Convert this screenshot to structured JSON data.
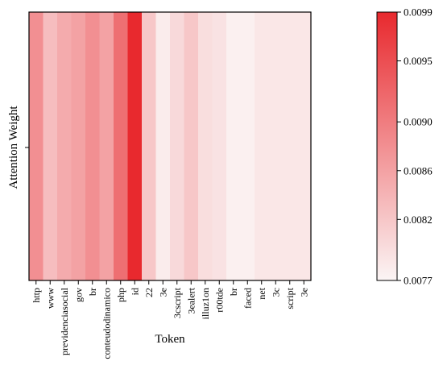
{
  "chart_data": {
    "type": "heatmap",
    "xlabel": "Token",
    "ylabel": "Attention Weight",
    "categories": [
      "http",
      "www",
      "previdenciasocial",
      "gov",
      "br",
      "conteudodinamico",
      "php",
      "id",
      "22",
      "3e",
      "3cscript",
      "3ealert",
      "illuz1on",
      "r00tde",
      "br",
      "faced",
      "net",
      "3c",
      "script",
      "3e"
    ],
    "values": [
      0.0088,
      0.0083,
      0.0085,
      0.0086,
      0.0088,
      0.0086,
      0.00915,
      0.0099,
      0.0082,
      0.0078,
      0.008,
      0.0082,
      0.00795,
      0.0079,
      0.00775,
      0.00775,
      0.00785,
      0.00785,
      0.00785,
      0.00785
    ],
    "colorbar": {
      "min": 0.0077,
      "max": 0.0099,
      "ticks": [
        "0.0077",
        "0.0082",
        "0.0086",
        "0.0090",
        "0.0095",
        "0.0099"
      ],
      "low_color": "#fbf5f5",
      "high_color": "#e8292e"
    }
  }
}
